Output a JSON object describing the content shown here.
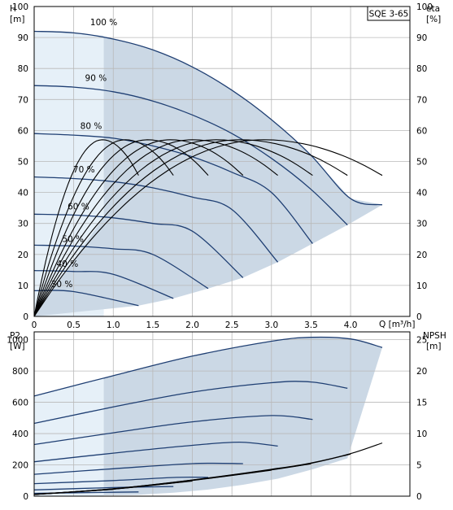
{
  "chart_data": [
    {
      "type": "line",
      "title": "SQE 3-65",
      "x_axis": {
        "label": "Q [m³/h]",
        "range": [
          0,
          4.75
        ],
        "ticks": [
          "0",
          "0.5",
          "1.0",
          "1.5",
          "2.0",
          "2.5",
          "3.0",
          "3.5",
          "4.0"
        ]
      },
      "y_left": {
        "label": [
          "H",
          "[m]"
        ],
        "range": [
          0,
          100
        ],
        "ticks": [
          "0",
          "10",
          "20",
          "30",
          "40",
          "50",
          "60",
          "70",
          "80",
          "90",
          "100"
        ]
      },
      "y_right": {
        "label": [
          "eta",
          "[%]"
        ],
        "range": [
          0,
          100
        ],
        "ticks": [
          "0",
          "10",
          "20",
          "30",
          "40",
          "50",
          "60",
          "70",
          "80",
          "90",
          "100"
        ]
      },
      "grid": true,
      "colors": {
        "envelope": "#cbd8e5",
        "envelope_low": "#e6f0f8",
        "head": "#1f3f73",
        "eta": "#000000"
      },
      "speed_labels": [
        "100 %",
        "90 %",
        "80 %",
        "70 %",
        "60 %",
        "50 %",
        "40 %",
        "30 %"
      ],
      "head_series": [
        {
          "name": "100 %",
          "x": [
            0,
            0.5,
            1.0,
            1.5,
            2.0,
            2.5,
            3.0,
            3.5,
            4.0,
            4.4
          ],
          "y": [
            92,
            91.5,
            89.5,
            86,
            80.5,
            73,
            63.5,
            52,
            38,
            36
          ]
        },
        {
          "name": "90 %",
          "x": [
            0,
            0.5,
            1.0,
            1.5,
            2.0,
            2.5,
            3.0,
            3.5,
            3.96
          ],
          "y": [
            74.5,
            74,
            72.5,
            69.5,
            65,
            59,
            51,
            41,
            29.5
          ]
        },
        {
          "name": "80 %",
          "x": [
            0,
            0.5,
            1.0,
            1.5,
            2.0,
            2.5,
            3.0,
            3.52
          ],
          "y": [
            59,
            58.5,
            57.5,
            55,
            51.5,
            46.5,
            40,
            23.5
          ]
        },
        {
          "name": "70 %",
          "x": [
            0,
            0.5,
            1.0,
            1.5,
            2.0,
            2.5,
            3.08
          ],
          "y": [
            45,
            44.5,
            43.5,
            41.5,
            38.5,
            34.5,
            17.5
          ]
        },
        {
          "name": "60 %",
          "x": [
            0,
            0.5,
            1.0,
            1.5,
            2.0,
            2.64
          ],
          "y": [
            33,
            32.7,
            31.8,
            30,
            27.5,
            12.5
          ]
        },
        {
          "name": "50 %",
          "x": [
            0,
            0.5,
            1.0,
            1.5,
            2.2
          ],
          "y": [
            23,
            22.7,
            21.8,
            20,
            9
          ]
        },
        {
          "name": "40 %",
          "x": [
            0,
            0.5,
            1.0,
            1.76
          ],
          "y": [
            14.8,
            14.5,
            13.6,
            5.8
          ]
        },
        {
          "name": "30 %",
          "x": [
            0,
            0.5,
            1.32
          ],
          "y": [
            8.3,
            8,
            3.5
          ]
        }
      ],
      "eta_series": [
        {
          "peak_x": 2.9,
          "end_x": 4.4,
          "end_y": 45.5
        },
        {
          "peak_x": 2.6,
          "end_x": 3.96,
          "end_y": 45.5
        },
        {
          "peak_x": 2.3,
          "end_x": 3.52,
          "end_y": 45.5
        },
        {
          "peak_x": 2.0,
          "end_x": 3.08,
          "end_y": 45.5
        },
        {
          "peak_x": 1.72,
          "end_x": 2.64,
          "end_y": 45.5
        },
        {
          "peak_x": 1.43,
          "end_x": 2.2,
          "end_y": 45.5
        },
        {
          "peak_x": 1.15,
          "end_x": 1.76,
          "end_y": 45.5
        },
        {
          "peak_x": 0.86,
          "end_x": 1.32,
          "end_y": 45.5
        }
      ],
      "eta_peak": 57
    },
    {
      "type": "line",
      "x_axis": {
        "range": [
          0,
          4.75
        ]
      },
      "y_left": {
        "label": [
          "P2",
          "[W]"
        ],
        "range": [
          0,
          1050
        ],
        "ticks": [
          "0",
          "200",
          "400",
          "600",
          "800",
          "1000"
        ]
      },
      "y_right": {
        "label": [
          "NPSH",
          "[m]"
        ],
        "range": [
          0,
          26.25
        ],
        "ticks": [
          "0",
          "5",
          "10",
          "15",
          "20",
          "25"
        ]
      },
      "grid": true,
      "power_series": [
        {
          "name": "100 %",
          "x": [
            0,
            1.0,
            2.0,
            3.0,
            3.5,
            4.0,
            4.4
          ],
          "y": [
            640,
            770,
            895,
            990,
            1015,
            1005,
            950
          ]
        },
        {
          "name": "90 %",
          "x": [
            0,
            1.0,
            2.0,
            3.0,
            3.5,
            3.96
          ],
          "y": [
            465,
            570,
            665,
            725,
            730,
            690
          ]
        },
        {
          "name": "80 %",
          "x": [
            0,
            1.0,
            2.0,
            3.0,
            3.52
          ],
          "y": [
            330,
            405,
            475,
            515,
            490
          ]
        },
        {
          "name": "70 %",
          "x": [
            0,
            1.0,
            2.0,
            2.6,
            3.08
          ],
          "y": [
            220,
            275,
            325,
            345,
            320
          ]
        },
        {
          "name": "60 %",
          "x": [
            0,
            1.0,
            2.0,
            2.64
          ],
          "y": [
            140,
            175,
            208,
            208
          ]
        },
        {
          "name": "50 %",
          "x": [
            0,
            1.0,
            1.8,
            2.2
          ],
          "y": [
            80,
            100,
            120,
            120
          ]
        },
        {
          "name": "40 %",
          "x": [
            0,
            1.0,
            1.76
          ],
          "y": [
            40,
            55,
            62
          ]
        },
        {
          "name": "30 %",
          "x": [
            0,
            1.0,
            1.32
          ],
          "y": [
            18,
            25,
            27
          ]
        }
      ],
      "npsh_series": [
        {
          "x": [
            0,
            1.0,
            2.0,
            3.0,
            3.5,
            4.0,
            4.4
          ],
          "y": [
            0.3,
            1.2,
            2.6,
            4.3,
            5.3,
            6.8,
            8.5
          ]
        }
      ]
    }
  ]
}
